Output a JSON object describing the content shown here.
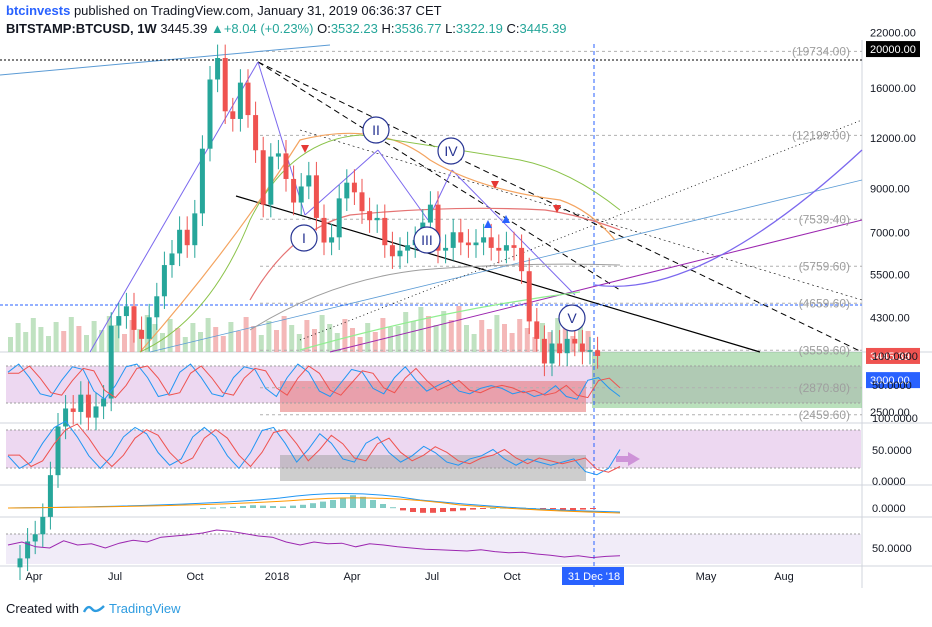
{
  "header": {
    "author": "btcinvests",
    "published_text": "published on TradingView.com, January 31, 2019 06:36:37 CET"
  },
  "symbol": {
    "name": "BITSTAMP:BTCUSD, 1W",
    "last": "3445.39",
    "change": "+8.04 (+0.23%)",
    "open_label": "O:",
    "open": "3532.23",
    "high_label": "H:",
    "high": "3536.77",
    "low_label": "L:",
    "low": "3322.19",
    "close_label": "C:",
    "close": "3445.39"
  },
  "footer": {
    "created_with": "Created with",
    "brand": "TradingView"
  },
  "colors": {
    "bull": "#26a69a",
    "bear": "#ef5350",
    "blue_line": "#5b9bd5",
    "purple": "#7b68ee",
    "marker_blue": "#2962ff"
  },
  "chart_data": [
    {
      "type": "candlestick",
      "title": "",
      "scale": "log",
      "price_axis": [
        "22000.00",
        "20000.00",
        "16000.00",
        "12000.00",
        "9000.00",
        "7000.00",
        "5500.00",
        "4300.00",
        "3445.39",
        "3000.00",
        "2500.00"
      ],
      "price_labels_highlight": [
        {
          "label": "20000.00",
          "value": 20000,
          "style": "black"
        },
        {
          "label": "3445.39",
          "value": 3445.39,
          "style": "red"
        },
        {
          "label": "3000.00",
          "value": 3000,
          "style": "blue"
        }
      ],
      "fib_levels": [
        {
          "label": "(19734.00)",
          "value": 19734
        },
        {
          "label": "(12199.00)",
          "value": 12199
        },
        {
          "label": "(7539.40)",
          "value": 7539.4
        },
        {
          "label": "(5759.60)",
          "value": 5759.6
        },
        {
          "label": "(4659.60)",
          "value": 4659.6
        },
        {
          "label": "(3559.60)",
          "value": 3559.6
        },
        {
          "label": "(2870.80)",
          "value": 2870.8
        },
        {
          "label": "(2459.60)",
          "value": 2459.6
        }
      ],
      "time_axis": [
        "Apr",
        "Jul",
        "Oct",
        "2018",
        "Apr",
        "Jul",
        "Oct",
        "31 Dec '18",
        "May",
        "Aug"
      ],
      "wave_labels": [
        "I",
        "II",
        "III",
        "IV",
        "V"
      ],
      "series": [
        {
          "name": "close",
          "values": [
            1080,
            1190,
            1240,
            1370,
            1740,
            2300,
            2550,
            2500,
            2760,
            2420,
            2580,
            2700,
            4100,
            4330,
            4580,
            4000,
            3800,
            4300,
            4850,
            5800,
            6200,
            7100,
            6500,
            7800,
            11300,
            16800,
            19000,
            14000,
            13400,
            16500,
            13700,
            11200,
            8200,
            10800,
            11000,
            9500,
            8300,
            9100,
            9700,
            7600,
            6600,
            6800,
            8500,
            9300,
            8800,
            7900,
            7500,
            7600,
            6500,
            6100,
            6300,
            6500,
            6700,
            7400,
            8200,
            6300,
            6400,
            7000,
            6600,
            6500,
            6600,
            6800,
            6400,
            6300,
            6500,
            6400,
            5600,
            4200,
            3800,
            3300,
            3700,
            3500,
            3800,
            3700,
            3530,
            3560,
            3445
          ]
        }
      ]
    },
    {
      "type": "line",
      "title": "",
      "ylim": [
        0,
        100
      ],
      "y_ticks": [
        "100.0000",
        "50.0000"
      ],
      "series": [
        {
          "name": "",
          "values": [
            70,
            85,
            60,
            30,
            25,
            55,
            80,
            75,
            35,
            20,
            45,
            80,
            85,
            60,
            25,
            30,
            70,
            85,
            60,
            30,
            25,
            60,
            80,
            75,
            40,
            25,
            60,
            85,
            70,
            35,
            25,
            50,
            75,
            70,
            40,
            30,
            60,
            80,
            55,
            35,
            45,
            55,
            35,
            30,
            40,
            45,
            40,
            30,
            35,
            25,
            30,
            45,
            25,
            20,
            55,
            60,
            40,
            25
          ]
        }
      ]
    },
    {
      "type": "line",
      "title": "",
      "ylim": [
        0,
        100
      ],
      "y_ticks": [
        "100.0000",
        "50.0000",
        "0.0000"
      ],
      "series": [
        {
          "name": "",
          "values": [
            40,
            20,
            30,
            60,
            85,
            95,
            70,
            40,
            20,
            40,
            70,
            85,
            75,
            45,
            25,
            35,
            70,
            85,
            70,
            40,
            20,
            45,
            80,
            85,
            60,
            30,
            50,
            75,
            60,
            35,
            30,
            60,
            70,
            45,
            30,
            40,
            55,
            45,
            30,
            25,
            35,
            40,
            50,
            35,
            25,
            35,
            30,
            25,
            30,
            35,
            15,
            10,
            20,
            50
          ]
        }
      ]
    },
    {
      "type": "bar",
      "title": "",
      "y_ticks": [
        "0.0000"
      ],
      "series": [
        {
          "name": "",
          "values": [
            0,
            1,
            2,
            3,
            5,
            7,
            6,
            5,
            4,
            6,
            8,
            12,
            16,
            20,
            26,
            32,
            28,
            20,
            10,
            2,
            -6,
            -10,
            -12,
            -12,
            -10,
            -8,
            -6,
            -4,
            -2,
            0,
            1,
            2,
            1,
            0,
            -1,
            -3,
            -5,
            -6,
            -4,
            -2
          ]
        }
      ]
    },
    {
      "type": "line",
      "title": "",
      "y_ticks": [
        "50.0000"
      ],
      "series": [
        {
          "name": "",
          "values": [
            55,
            60,
            52,
            50,
            62,
            55,
            57,
            50,
            58,
            63,
            60,
            68,
            70,
            72,
            75,
            80,
            78,
            74,
            70,
            68,
            60,
            55,
            60,
            57,
            58,
            52,
            57,
            55,
            52,
            50,
            48,
            47,
            46,
            45,
            47,
            44,
            42,
            43,
            40,
            38,
            35,
            37,
            34,
            36,
            37
          ]
        }
      ]
    }
  ]
}
